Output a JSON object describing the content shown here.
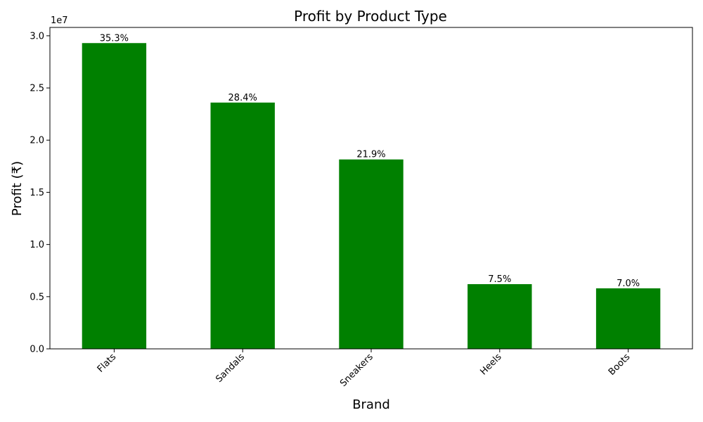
{
  "chart_data": {
    "type": "bar",
    "title": "Profit by Product Type",
    "xlabel": "Brand",
    "ylabel": "Profit (₹)",
    "y_offset_label": "1e7",
    "categories": [
      "Flats",
      "Sandals",
      "Sneakers",
      "Heels",
      "Boots"
    ],
    "values": [
      29300000,
      23600000,
      18150000,
      6200000,
      5800000
    ],
    "bar_labels": [
      "35.3%",
      "28.4%",
      "21.9%",
      "7.5%",
      "7.0%"
    ],
    "yticks": [
      "0.0",
      "0.5",
      "1.0",
      "1.5",
      "2.0",
      "2.5",
      "3.0"
    ],
    "ylim": [
      0,
      3.08
    ],
    "y_scale": 10000000,
    "bar_color": "#008000",
    "grid": false,
    "xtick_rotation": -45
  }
}
